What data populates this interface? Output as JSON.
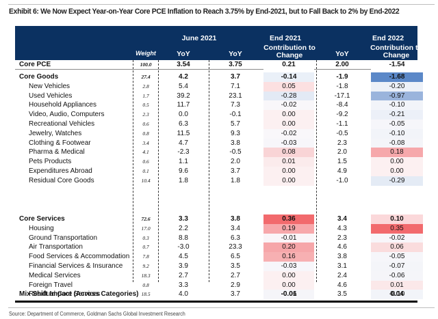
{
  "title": "Exhibit 6: We Now Expect Year-on-Year Core PCE Inflation to Reach 3.75% by End-2021, but to Fall Back to 2% by End-2022",
  "header": {
    "weight": "Weight",
    "june2021": "June 2021",
    "end2021": "End 2021",
    "end2022": "End 2022",
    "yoy": "YoY",
    "contribution_line1": "Contribution to",
    "contribution_line2": "Change"
  },
  "colors": {
    "header_bg": "#0b3161",
    "heat_negative_strong": "#4f7ec4",
    "heat_positive_strong": "#f26a6d"
  },
  "rows": [
    {
      "label": "Core PCE",
      "weight": "100.0",
      "jun21_yoy": "3.54",
      "end21_yoy": "3.75",
      "end21_contrib": "0.21",
      "end22_yoy": "2.00",
      "end22_contrib": "-1.54",
      "type": "total",
      "bg21": "#ffffff",
      "bg22": "#ffffff"
    },
    {
      "label": "Core Goods",
      "weight": "27.4",
      "jun21_yoy": "4.2",
      "end21_yoy": "3.7",
      "end21_contrib": "-0.14",
      "end22_yoy": "-1.9",
      "end22_contrib": "-1.68",
      "type": "total",
      "bg21": "#eaf0f8",
      "bg22": "#5b88c8"
    },
    {
      "label": "New Vehicles",
      "weight": "2.8",
      "jun21_yoy": "5.4",
      "end21_yoy": "7.1",
      "end21_contrib": "0.05",
      "end22_yoy": "-1.8",
      "end22_contrib": "-0.20",
      "type": "item",
      "bg21": "#fce0e1",
      "bg22": "#edf1f8"
    },
    {
      "label": "Used Vehicles",
      "weight": "1.7",
      "jun21_yoy": "39.2",
      "end21_yoy": "23.1",
      "end21_contrib": "-0.28",
      "end22_yoy": "-17.1",
      "end22_contrib": "-0.97",
      "type": "item",
      "bg21": "#e3eaf5",
      "bg22": "#9ab4dc"
    },
    {
      "label": "Household Appliances",
      "weight": "0.5",
      "jun21_yoy": "11.7",
      "end21_yoy": "7.3",
      "end21_contrib": "-0.02",
      "end22_yoy": "-8.4",
      "end22_contrib": "-0.10",
      "type": "item",
      "bg21": "#f9f7fa",
      "bg22": "#f2f4f9"
    },
    {
      "label": "Video, Audio, Computers",
      "weight": "2.3",
      "jun21_yoy": "0.0",
      "end21_yoy": "-0.1",
      "end21_contrib": "0.00",
      "end22_yoy": "-9.2",
      "end22_contrib": "-0.21",
      "type": "item",
      "bg21": "#fcf0f1",
      "bg22": "#ecf0f8"
    },
    {
      "label": "Recreational Vehicles",
      "weight": "0.6",
      "jun21_yoy": "6.3",
      "end21_yoy": "5.7",
      "end21_contrib": "0.00",
      "end22_yoy": "-1.1",
      "end22_contrib": "-0.05",
      "type": "item",
      "bg21": "#fcf0f1",
      "bg22": "#f6f6fa"
    },
    {
      "label": "Jewelry, Watches",
      "weight": "0.8",
      "jun21_yoy": "11.5",
      "end21_yoy": "9.3",
      "end21_contrib": "-0.02",
      "end22_yoy": "-0.5",
      "end22_contrib": "-0.10",
      "type": "item",
      "bg21": "#f9f7fa",
      "bg22": "#f2f4f9"
    },
    {
      "label": "Clothing & Footwear",
      "weight": "3.4",
      "jun21_yoy": "4.7",
      "end21_yoy": "3.8",
      "end21_contrib": "-0.03",
      "end22_yoy": "2.3",
      "end22_contrib": "-0.08",
      "type": "item",
      "bg21": "#f7f6fa",
      "bg22": "#f4f5f9"
    },
    {
      "label": "Pharma & Medical",
      "weight": "4.1",
      "jun21_yoy": "-2.3",
      "end21_yoy": "-0.5",
      "end21_contrib": "0.08",
      "end22_yoy": "2.0",
      "end22_contrib": "0.18",
      "type": "item",
      "bg21": "#f9d4d6",
      "bg22": "#f6a8ab"
    },
    {
      "label": "Pets Products",
      "weight": "0.6",
      "jun21_yoy": "1.1",
      "end21_yoy": "2.0",
      "end21_contrib": "0.01",
      "end22_yoy": "1.5",
      "end22_contrib": "0.00",
      "type": "item",
      "bg21": "#fbebec",
      "bg22": "#fcf0f1"
    },
    {
      "label": "Expenditures Abroad",
      "weight": "0.1",
      "jun21_yoy": "9.6",
      "end21_yoy": "3.7",
      "end21_contrib": "0.00",
      "end22_yoy": "4.9",
      "end22_contrib": "0.00",
      "type": "item",
      "bg21": "#fcf0f1",
      "bg22": "#fcf0f1"
    },
    {
      "label": "Residual Core Goods",
      "weight": "10.4",
      "jun21_yoy": "1.8",
      "end21_yoy": "1.8",
      "end21_contrib": "0.00",
      "end22_yoy": "-1.0",
      "end22_contrib": "-0.29",
      "type": "item",
      "bg21": "#fcf0f1",
      "bg22": "#e4ebf5"
    },
    {
      "label": "Core Services",
      "weight": "72.6",
      "jun21_yoy": "3.3",
      "end21_yoy": "3.8",
      "end21_contrib": "0.36",
      "end22_yoy": "3.4",
      "end22_contrib": "0.10",
      "type": "total",
      "bg21": "#f26a6d",
      "bg22": "#fbd8da"
    },
    {
      "label": "Housing",
      "weight": "17.0",
      "jun21_yoy": "2.2",
      "end21_yoy": "3.4",
      "end21_contrib": "0.19",
      "end22_yoy": "4.3",
      "end22_contrib": "0.35",
      "type": "item",
      "bg21": "#f7a8ab",
      "bg22": "#f26a6d"
    },
    {
      "label": "Ground Transportation",
      "weight": "0.3",
      "jun21_yoy": "8.8",
      "end21_yoy": "6.3",
      "end21_contrib": "-0.01",
      "end22_yoy": "2.3",
      "end22_contrib": "-0.02",
      "type": "item",
      "bg21": "#faf5f8",
      "bg22": "#f8f6fa"
    },
    {
      "label": "Air Transportation",
      "weight": "0.7",
      "jun21_yoy": "-3.0",
      "end21_yoy": "23.3",
      "end21_contrib": "0.20",
      "end22_yoy": "4.6",
      "end22_contrib": "0.06",
      "type": "item",
      "bg21": "#f6a6a9",
      "bg22": "#fadcdd"
    },
    {
      "label": "Food Services & Accommodation",
      "weight": "7.8",
      "jun21_yoy": "4.5",
      "end21_yoy": "6.5",
      "end21_contrib": "0.16",
      "end22_yoy": "3.8",
      "end22_contrib": "-0.05",
      "type": "item",
      "bg21": "#f7b0b2",
      "bg22": "#f6f6fa"
    },
    {
      "label": "Financial Services & Insurance",
      "weight": "9.2",
      "jun21_yoy": "3.9",
      "end21_yoy": "3.5",
      "end21_contrib": "-0.03",
      "end22_yoy": "3.1",
      "end22_contrib": "-0.07",
      "type": "item",
      "bg21": "#f7f6fa",
      "bg22": "#f4f5f9"
    },
    {
      "label": "Medical Services",
      "weight": "18.3",
      "jun21_yoy": "2.7",
      "end21_yoy": "2.7",
      "end21_contrib": "0.00",
      "end22_yoy": "2.4",
      "end22_contrib": "-0.06",
      "type": "item",
      "bg21": "#fcf0f1",
      "bg22": "#f5f5f9"
    },
    {
      "label": "Foreign Travel",
      "weight": "0.8",
      "jun21_yoy": "3.3",
      "end21_yoy": "2.9",
      "end21_contrib": "0.00",
      "end22_yoy": "4.6",
      "end22_contrib": "0.01",
      "type": "item",
      "bg21": "#fcf0f1",
      "bg22": "#fbe8e9"
    },
    {
      "label": "Residual Core Services",
      "weight": "18.5",
      "jun21_yoy": "4.0",
      "end21_yoy": "3.7",
      "end21_contrib": "-0.06",
      "end22_yoy": "3.5",
      "end22_contrib": "-0.10",
      "type": "item",
      "bg21": "#f5f5f9",
      "bg22": "#f2f4f9"
    }
  ],
  "mix_shift": {
    "label": "Mix Shift Impact (Across Categories)",
    "end21_contrib": "-0.01",
    "end22_contrib": "0.04"
  },
  "source": "Source: Department of Commerce, Goldman Sachs Global Investment Research"
}
